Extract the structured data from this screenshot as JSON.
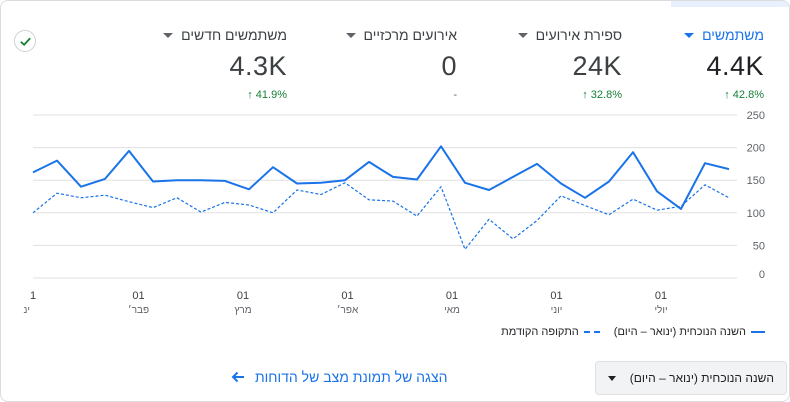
{
  "metrics": [
    {
      "label": "משתמשים",
      "value": "4.4K",
      "delta": "42.8%",
      "active": true
    },
    {
      "label": "ספירת אירועים",
      "value": "24K",
      "delta": "32.8%",
      "active": false
    },
    {
      "label": "אירועים מרכזיים",
      "value": "0",
      "delta": "-",
      "active": false
    },
    {
      "label": "משתמשים חדשים",
      "value": "4.3K",
      "delta": "41.9%",
      "active": false
    }
  ],
  "chart_data": {
    "type": "line",
    "yticks": [
      250,
      200,
      150,
      100,
      50,
      0
    ],
    "ylim": [
      0,
      250
    ],
    "xticks": [
      {
        "day": "1",
        "month": "ינ"
      },
      {
        "day": "01",
        "month": "פבר׳"
      },
      {
        "day": "01",
        "month": "מרץ"
      },
      {
        "day": "01",
        "month": "אפר׳"
      },
      {
        "day": "01",
        "month": "מאי"
      },
      {
        "day": "01",
        "month": "יוני"
      },
      {
        "day": "01",
        "month": "יולי"
      }
    ],
    "series": [
      {
        "name": "השנה הנוכחית (ינואר – היום)",
        "style": "solid",
        "values": [
          162,
          180,
          140,
          152,
          195,
          148,
          150,
          150,
          149,
          136,
          170,
          145,
          146,
          150,
          178,
          155,
          151,
          202,
          146,
          135,
          155,
          175,
          145,
          123,
          148,
          193,
          133,
          106,
          176,
          167
        ]
      },
      {
        "name": "התקופה הקודמת",
        "style": "dashed",
        "values": [
          100,
          130,
          123,
          127,
          117,
          108,
          123,
          101,
          116,
          112,
          100,
          135,
          128,
          146,
          120,
          118,
          95,
          140,
          44,
          90,
          60,
          88,
          126,
          111,
          97,
          121,
          104,
          110,
          143,
          123
        ]
      }
    ],
    "grid": true,
    "color": "#1a73e8"
  },
  "range_selector": "השנה הנוכחית (ינואר – היום)",
  "snapshot_link": "הצגה של תמונת מצב של הדוחות"
}
